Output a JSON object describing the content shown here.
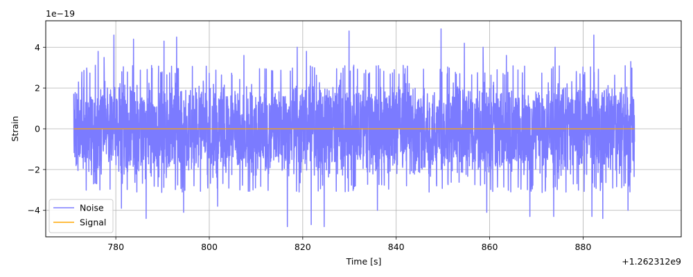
{
  "chart_data": {
    "type": "line",
    "title": "",
    "xlabel": "Time [s]",
    "ylabel": "Strain",
    "x_offset_label": "+1.262312e9",
    "y_scale_label": "1e−19",
    "xlim": [
      765,
      901
    ],
    "ylim": [
      -5.3,
      5.3
    ],
    "x_ticks": [
      780,
      800,
      820,
      840,
      860,
      880
    ],
    "x_tick_labels": [
      "780",
      "800",
      "820",
      "840",
      "860",
      "880"
    ],
    "y_ticks": [
      -4,
      -2,
      0,
      2,
      4
    ],
    "y_tick_labels": [
      "−4",
      "−2",
      "0",
      "2",
      "4"
    ],
    "grid": true,
    "legend_position": "lower-left",
    "series": [
      {
        "name": "Noise",
        "color": "#7b7bff",
        "x_range": [
          771.0,
          891.0
        ],
        "typical_amplitude": 2.5,
        "peaks": [
          {
            "x": 776.2,
            "y": 3.8
          },
          {
            "x": 777.5,
            "y": 3.5
          },
          {
            "x": 779.6,
            "y": 4.6
          },
          {
            "x": 783.8,
            "y": 4.4
          },
          {
            "x": 790.3,
            "y": 4.3
          },
          {
            "x": 793.0,
            "y": 4.5
          },
          {
            "x": 807.4,
            "y": 3.6
          },
          {
            "x": 818.8,
            "y": 4.0
          },
          {
            "x": 820.8,
            "y": 3.8
          },
          {
            "x": 829.9,
            "y": 4.8
          },
          {
            "x": 849.6,
            "y": 4.9
          },
          {
            "x": 854.6,
            "y": 4.2
          },
          {
            "x": 858.6,
            "y": 4.0
          },
          {
            "x": 863.6,
            "y": 3.6
          },
          {
            "x": 874.0,
            "y": 4.0
          },
          {
            "x": 882.3,
            "y": 4.6
          },
          {
            "x": 890.2,
            "y": 3.3
          }
        ],
        "troughs": [
          {
            "x": 781.2,
            "y": -3.9
          },
          {
            "x": 786.5,
            "y": -4.4
          },
          {
            "x": 794.5,
            "y": -4.1
          },
          {
            "x": 801.8,
            "y": -3.8
          },
          {
            "x": 816.7,
            "y": -4.8
          },
          {
            "x": 821.8,
            "y": -4.7
          },
          {
            "x": 824.6,
            "y": -4.8
          },
          {
            "x": 836.0,
            "y": -4.0
          },
          {
            "x": 859.4,
            "y": -4.1
          },
          {
            "x": 868.6,
            "y": -4.3
          },
          {
            "x": 873.7,
            "y": -4.3
          },
          {
            "x": 881.9,
            "y": -4.3
          },
          {
            "x": 884.2,
            "y": -4.4
          },
          {
            "x": 889.6,
            "y": -4.0
          }
        ]
      },
      {
        "name": "Signal",
        "color": "#ffa500",
        "x": [
          771.0,
          891.0
        ],
        "y": [
          0,
          0
        ]
      }
    ]
  }
}
